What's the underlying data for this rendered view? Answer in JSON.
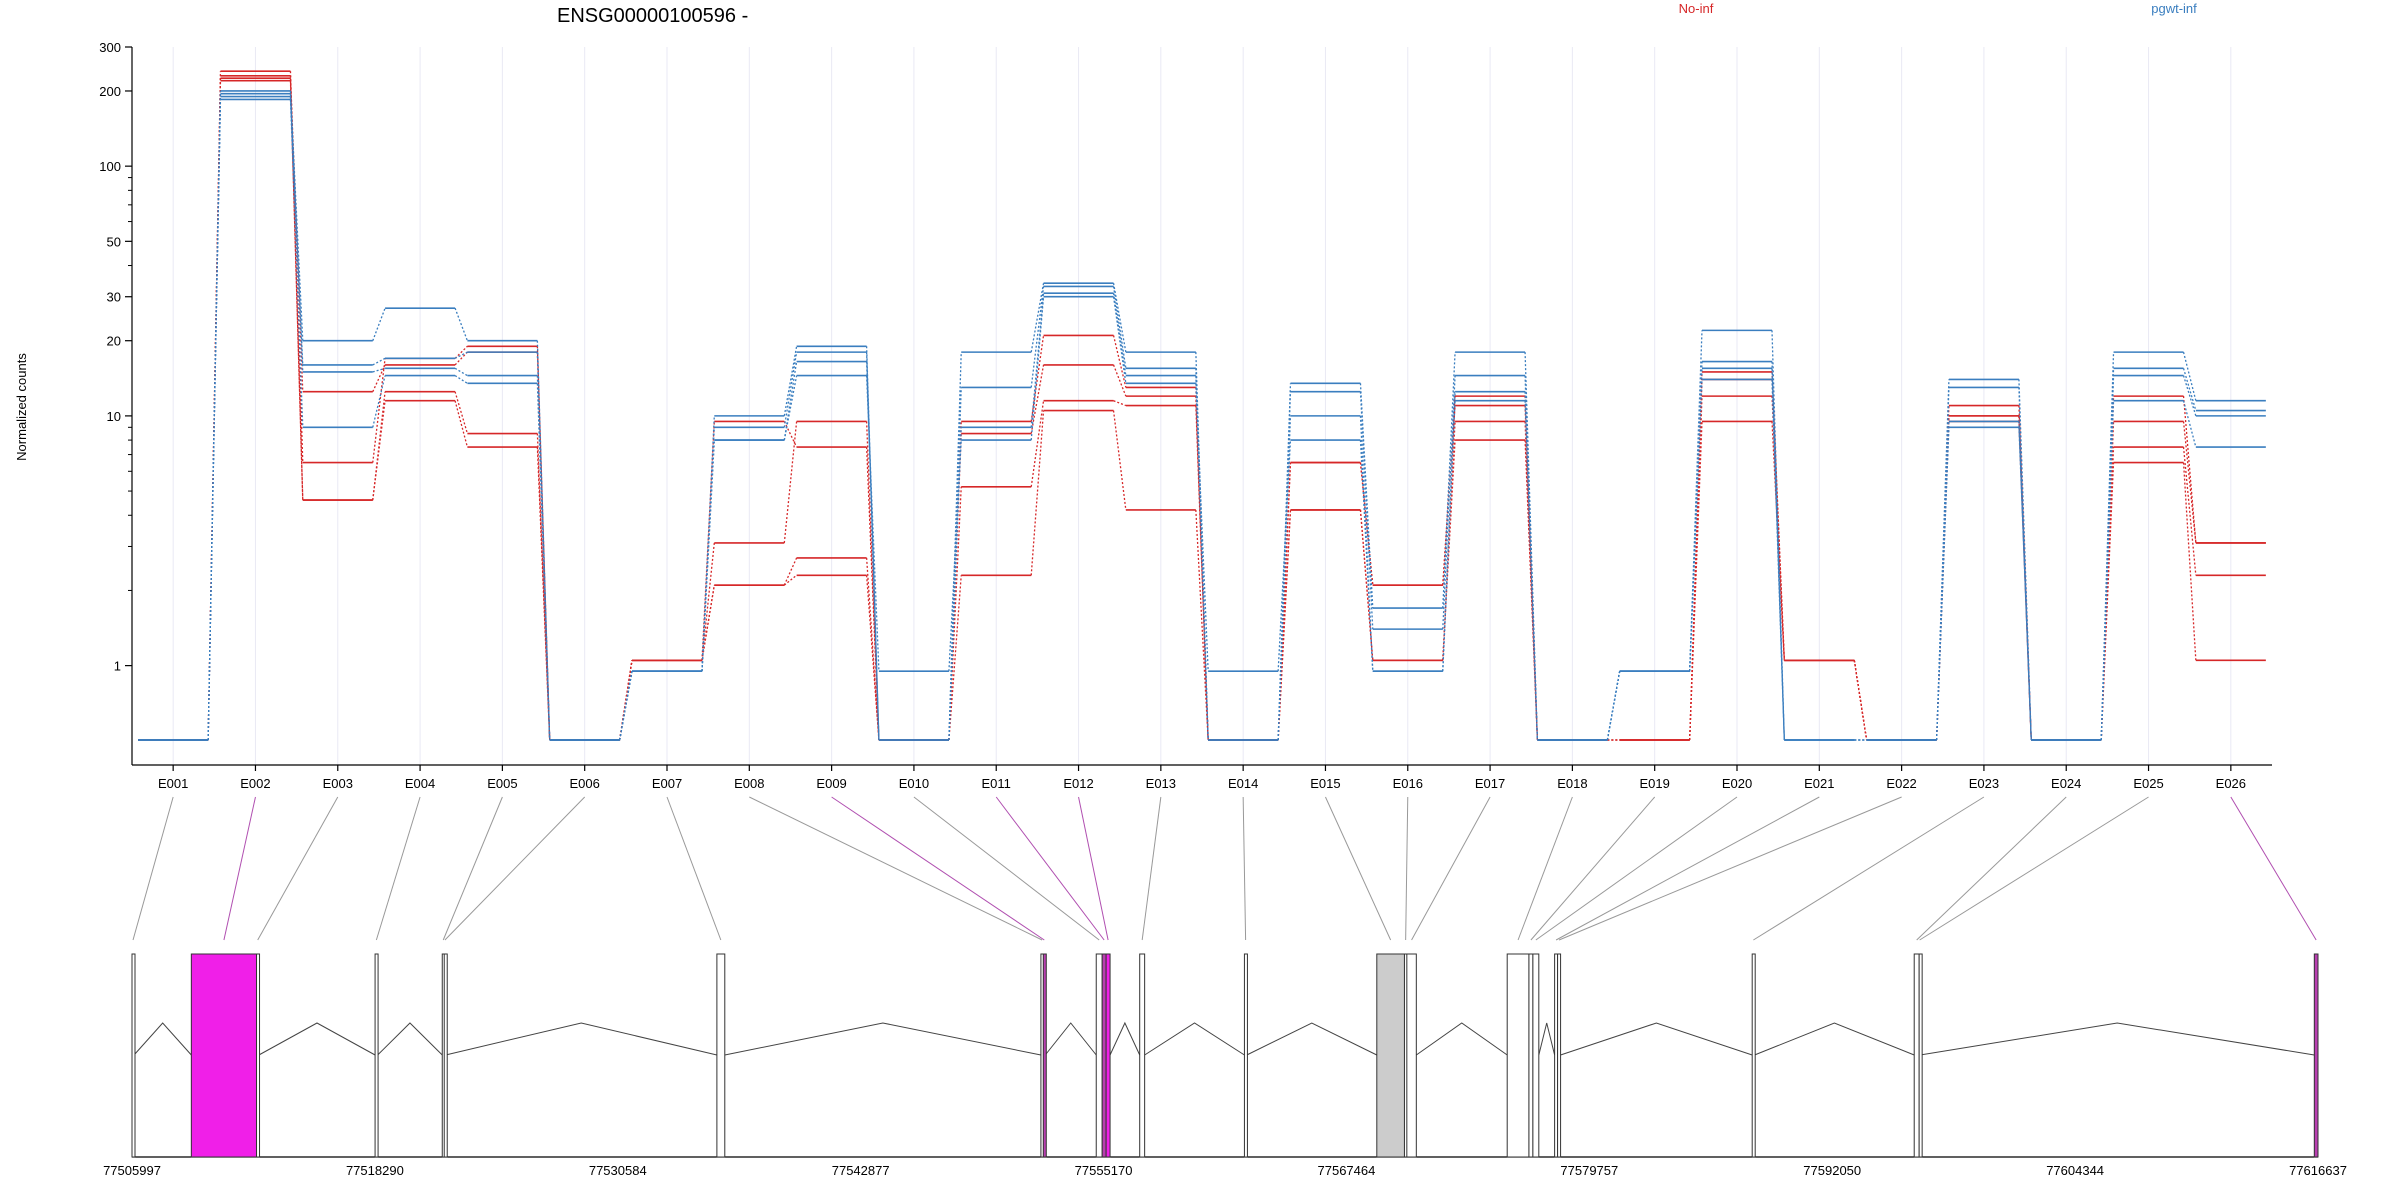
{
  "chart_data": {
    "type": "line",
    "title": "ENSG00000100596 -",
    "ylabel": "Normalized counts",
    "yscale": "log",
    "ylim": [
      0.4,
      300
    ],
    "yticks": [
      1,
      10,
      20,
      30,
      50,
      100,
      200,
      300
    ],
    "zero_floor": true,
    "categories": [
      "E001",
      "E002",
      "E003",
      "E004",
      "E005",
      "E006",
      "E007",
      "E008",
      "E009",
      "E010",
      "E011",
      "E012",
      "E013",
      "E014",
      "E015",
      "E016",
      "E017",
      "E018",
      "E019",
      "E020",
      "E021",
      "E022",
      "E023",
      "E024",
      "E025",
      "E026"
    ],
    "groups": [
      {
        "name": "No-inf",
        "color": "#d62728"
      },
      {
        "name": "pgwt-inf",
        "color": "#3a7ebf"
      }
    ],
    "series": [
      {
        "group": "No-inf",
        "values": [
          0,
          240,
          6.5,
          17,
          19,
          0,
          1.05,
          3.1,
          9.5,
          0,
          9.5,
          21,
          13,
          0,
          6.5,
          2.1,
          12,
          0,
          0,
          15,
          1.05,
          0,
          11,
          0,
          12,
          3.1
        ]
      },
      {
        "group": "No-inf",
        "values": [
          0,
          230,
          12.5,
          16,
          18,
          0,
          1.05,
          9.5,
          7.5,
          0,
          8.5,
          16,
          12,
          0,
          6.5,
          2.1,
          11,
          0,
          0,
          14,
          1.05,
          0,
          10,
          0,
          9.5,
          3.1
        ]
      },
      {
        "group": "No-inf",
        "values": [
          0,
          225,
          4.6,
          12.5,
          8.5,
          0,
          1.05,
          2.1,
          2.3,
          0,
          2.3,
          10.5,
          4.2,
          0,
          4.2,
          1.05,
          8,
          0,
          0,
          12,
          1.05,
          0,
          9.5,
          0,
          7.5,
          2.3
        ]
      },
      {
        "group": "No-inf",
        "values": [
          0,
          220,
          4.6,
          11.5,
          7.5,
          0,
          1.05,
          2.1,
          2.7,
          0,
          5.2,
          11.5,
          11,
          0,
          4.2,
          1.05,
          9.5,
          0,
          0,
          9.5,
          1.05,
          0,
          10,
          0,
          6.5,
          1.05
        ]
      },
      {
        "group": "pgwt-inf",
        "values": [
          0,
          200,
          20,
          27,
          20,
          0,
          0.95,
          10,
          19,
          0,
          18,
          34,
          18,
          0,
          13.5,
          1.7,
          18,
          0,
          0.95,
          22,
          0,
          0,
          14,
          0,
          18,
          11.5
        ]
      },
      {
        "group": "pgwt-inf",
        "values": [
          0,
          195,
          16,
          17,
          18,
          0,
          0.95,
          9,
          18,
          0,
          13,
          33,
          15.5,
          0,
          12.5,
          1.4,
          14.5,
          0,
          0.95,
          16.5,
          0,
          0,
          13,
          0,
          15.5,
          10.5
        ]
      },
      {
        "group": "pgwt-inf",
        "values": [
          0,
          190,
          15,
          15.5,
          14.5,
          0,
          0.95,
          8,
          16.5,
          0,
          9,
          31,
          14.5,
          0,
          10,
          0.95,
          12.5,
          0,
          0.95,
          15.5,
          0,
          0,
          9.5,
          0,
          14.5,
          10
        ]
      },
      {
        "group": "pgwt-inf",
        "values": [
          0,
          185,
          9,
          14.5,
          13.5,
          0,
          0.95,
          8,
          14.5,
          0.95,
          8,
          30,
          13.5,
          0.95,
          8,
          0.95,
          11.5,
          0,
          0.95,
          14,
          0,
          0,
          9,
          0,
          11.5,
          7.5
        ]
      }
    ],
    "gene_model": {
      "coordinates": [
        "77505997",
        "77518290",
        "77530584",
        "77542877",
        "77555170",
        "77567464",
        "77579757",
        "77592050",
        "77604344",
        "77616637"
      ],
      "range": [
        77505997,
        77616637
      ],
      "highlight_color": "#f01fe8",
      "exons": [
        {
          "id": "E001",
          "start": 77505997,
          "end": 77506100,
          "fill": "#ffffff",
          "connector": "#999999"
        },
        {
          "id": "E002",
          "start": 77509000,
          "end": 77512300,
          "fill": "#f01fe8",
          "connector": "#b04fb0"
        },
        {
          "id": "E003",
          "start": 77512300,
          "end": 77512420,
          "fill": "#ffffff",
          "connector": "#999999"
        },
        {
          "id": "E004",
          "start": 77518300,
          "end": 77518430,
          "fill": "#ffffff",
          "connector": "#999999"
        },
        {
          "id": "E005",
          "start": 77521700,
          "end": 77521800,
          "fill": "#ffffff",
          "connector": "#999999"
        },
        {
          "id": "E006",
          "start": 77521800,
          "end": 77521870,
          "fill": "#ffffff",
          "connector": "#999999"
        },
        {
          "id": "E007",
          "start": 77535600,
          "end": 77536000,
          "fill": "#ffffff",
          "connector": "#999999"
        },
        {
          "id": "E008",
          "start": 77552000,
          "end": 77552120,
          "fill": "#ffffff",
          "connector": "#999999"
        },
        {
          "id": "E009",
          "start": 77552120,
          "end": 77552220,
          "fill": "#b83fb0",
          "connector": "#b04fb0"
        },
        {
          "id": "E010",
          "start": 77554800,
          "end": 77555100,
          "fill": "#ffffff",
          "connector": "#999999"
        },
        {
          "id": "E011",
          "start": 77555100,
          "end": 77555300,
          "fill": "#b83fb0",
          "connector": "#b04fb0"
        },
        {
          "id": "E012",
          "start": 77555300,
          "end": 77555500,
          "fill": "#f01fe8",
          "connector": "#b04fb0"
        },
        {
          "id": "E013",
          "start": 77557000,
          "end": 77557250,
          "fill": "#ffffff",
          "connector": "#999999"
        },
        {
          "id": "E014",
          "start": 77562300,
          "end": 77562420,
          "fill": "#ffffff",
          "connector": "#999999"
        },
        {
          "id": "E015",
          "start": 77569000,
          "end": 77570400,
          "fill": "#cccccc",
          "connector": "#999999"
        },
        {
          "id": "E016",
          "start": 77570400,
          "end": 77570520,
          "fill": "#ffffff",
          "connector": "#999999"
        },
        {
          "id": "E017",
          "start": 77570520,
          "end": 77571000,
          "fill": "#ffffff",
          "connector": "#999999"
        },
        {
          "id": "E018",
          "start": 77575600,
          "end": 77576700,
          "fill": "#ffffff",
          "connector": "#999999"
        },
        {
          "id": "E019",
          "start": 77576700,
          "end": 77576900,
          "fill": "#ffffff",
          "connector": "#999999"
        },
        {
          "id": "E020",
          "start": 77576900,
          "end": 77577200,
          "fill": "#ffffff",
          "connector": "#999999"
        },
        {
          "id": "E021",
          "start": 77578000,
          "end": 77578150,
          "fill": "#ffffff",
          "connector": "#999999"
        },
        {
          "id": "E022",
          "start": 77578150,
          "end": 77578300,
          "fill": "#ffffff",
          "connector": "#999999"
        },
        {
          "id": "E023",
          "start": 77588000,
          "end": 77588120,
          "fill": "#ffffff",
          "connector": "#999999"
        },
        {
          "id": "E024",
          "start": 77596200,
          "end": 77596450,
          "fill": "#ffffff",
          "connector": "#999999"
        },
        {
          "id": "E025",
          "start": 77596450,
          "end": 77596500,
          "fill": "#ffffff",
          "connector": "#999999"
        },
        {
          "id": "E026",
          "start": 77616450,
          "end": 77616637,
          "fill": "#b83fb0",
          "connector": "#b04fb0"
        }
      ]
    }
  }
}
